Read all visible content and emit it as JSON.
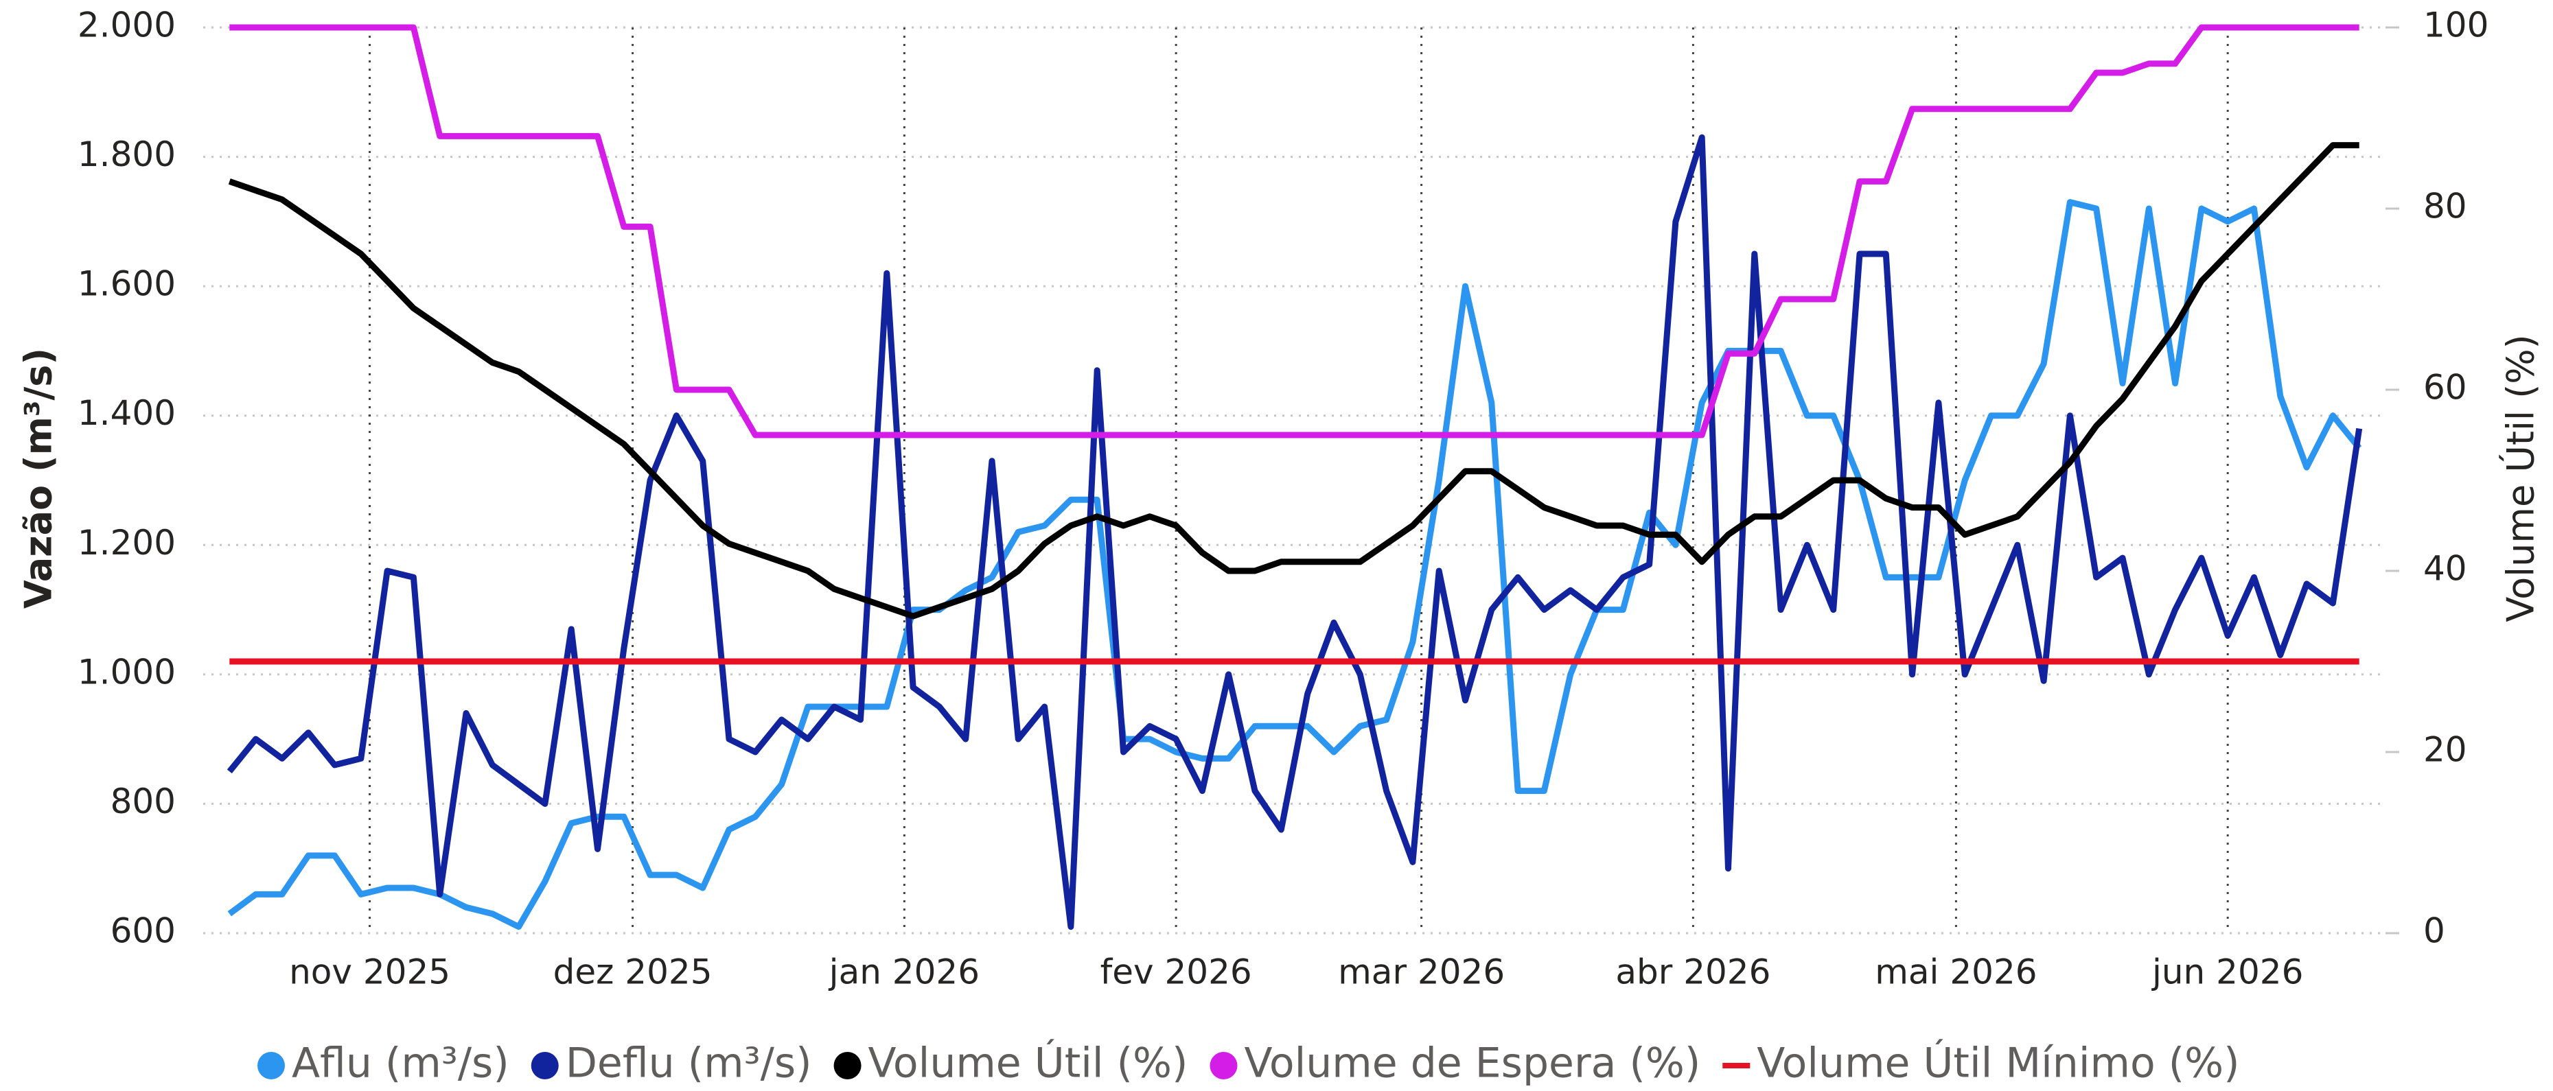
{
  "chart_data": {
    "type": "line",
    "x": [
      0,
      3,
      6,
      9,
      12,
      15,
      18,
      21,
      24,
      27,
      30,
      33,
      36,
      39,
      42,
      45,
      48,
      51,
      54,
      57,
      60,
      63,
      66,
      69,
      72,
      75,
      78,
      81,
      84,
      87,
      90,
      93,
      96,
      99,
      102,
      105,
      108,
      111,
      114,
      117,
      120,
      123,
      126,
      129,
      132,
      135,
      138,
      141,
      144,
      147,
      150,
      153,
      156,
      159,
      162,
      165,
      168,
      171,
      174,
      177,
      180,
      183,
      186,
      189,
      192,
      195,
      198,
      201,
      204,
      207,
      210,
      213,
      216,
      219,
      222,
      225,
      228,
      231,
      234,
      237,
      240,
      243
    ],
    "xlim": [
      -3,
      246
    ],
    "xticks": [
      {
        "value": 16,
        "label": "nov 2025"
      },
      {
        "value": 46,
        "label": "dez 2025"
      },
      {
        "value": 77,
        "label": "jan 2026"
      },
      {
        "value": 108,
        "label": "fev 2026"
      },
      {
        "value": 136,
        "label": "mar 2026"
      },
      {
        "value": 167,
        "label": "abr 2026"
      },
      {
        "value": 197,
        "label": "mai 2026"
      },
      {
        "value": 228,
        "label": "jun 2026"
      }
    ],
    "ylim": [
      600,
      2000
    ],
    "yticks": [
      600,
      800,
      {
        "value": 1000,
        "label": "1.000"
      },
      {
        "value": 1200,
        "label": "1.200"
      },
      {
        "value": 1400,
        "label": "1.400"
      },
      {
        "value": 1600,
        "label": "1.600"
      },
      {
        "value": 1800,
        "label": "1.800"
      },
      {
        "value": 2000,
        "label": "2.000"
      }
    ],
    "y2lim": [
      0,
      100
    ],
    "y2ticks": [
      0,
      20,
      40,
      60,
      80,
      100
    ],
    "y_label": "Vazão (m³/s)",
    "y2_label": "Volume Útil (%)",
    "grid": true,
    "legend": "bottom",
    "series": [
      {
        "name": "Aflu (m³/s)",
        "color": "#2b95f0",
        "values": [
          630,
          660,
          660,
          720,
          720,
          660,
          670,
          670,
          660,
          640,
          630,
          610,
          680,
          770,
          780,
          780,
          690,
          690,
          670,
          760,
          780,
          830,
          950,
          950,
          950,
          950,
          1100,
          1100,
          1130,
          1150,
          1220,
          1230,
          1270,
          1270,
          900,
          900,
          880,
          870,
          870,
          920,
          920,
          920,
          880,
          920,
          930,
          1050,
          1300,
          1600,
          1420,
          820,
          820,
          1000,
          1100,
          1100,
          1250,
          1200,
          1420,
          1500,
          1500,
          1500,
          1400,
          1400,
          1300,
          1150,
          1150,
          1150,
          1300,
          1400,
          1400,
          1480,
          1730,
          1720,
          1450,
          1720,
          1450,
          1720,
          1700,
          1720,
          1430,
          1320,
          1400,
          1350
        ]
      },
      {
        "name": "Deflu (m³/s)",
        "color": "#12239e",
        "values": [
          850,
          900,
          870,
          910,
          860,
          870,
          1160,
          1150,
          660,
          940,
          860,
          830,
          800,
          1070,
          730,
          1040,
          1300,
          1400,
          1330,
          900,
          880,
          930,
          900,
          950,
          930,
          1620,
          980,
          950,
          900,
          1330,
          900,
          950,
          610,
          1470,
          880,
          920,
          900,
          820,
          1000,
          820,
          760,
          970,
          1080,
          1000,
          820,
          710,
          1160,
          960,
          1100,
          1150,
          1100,
          1130,
          1100,
          1150,
          1170,
          1700,
          1830,
          700,
          1650,
          1100,
          1200,
          1100,
          1650,
          1650,
          1000,
          1420,
          1000,
          1100,
          1200,
          990,
          1400,
          1150,
          1180,
          1000,
          1100,
          1180,
          1060,
          1150,
          1030,
          1140,
          1110,
          1380
        ]
      },
      {
        "name": "Volume Útil (%)",
        "color": "#000000",
        "axis": "y2",
        "values": [
          83,
          82,
          81,
          79,
          77,
          75,
          72,
          69,
          67,
          65,
          63,
          62,
          60,
          58,
          56,
          54,
          51,
          48,
          45,
          43,
          42,
          41,
          40,
          38,
          37,
          36,
          35,
          36,
          37,
          38,
          40,
          43,
          45,
          46,
          45,
          46,
          45,
          42,
          40,
          40,
          41,
          41,
          41,
          41,
          43,
          45,
          48,
          51,
          51,
          49,
          47,
          46,
          45,
          45,
          44,
          44,
          41,
          44,
          46,
          46,
          48,
          50,
          50,
          48,
          47,
          47,
          44,
          45,
          46,
          49,
          52,
          56,
          59,
          63,
          67,
          72,
          75,
          78,
          81,
          84,
          87,
          87
        ]
      },
      {
        "name": "Volume de Espera (%)",
        "color": "#d41ee8",
        "axis": "y2",
        "values": [
          100,
          100,
          100,
          100,
          100,
          100,
          100,
          100,
          88,
          88,
          88,
          88,
          88,
          88,
          88,
          78,
          78,
          60,
          60,
          60,
          55,
          55,
          55,
          55,
          55,
          55,
          55,
          55,
          55,
          55,
          55,
          55,
          55,
          55,
          55,
          55,
          55,
          55,
          55,
          55,
          55,
          55,
          55,
          55,
          55,
          55,
          55,
          55,
          55,
          55,
          55,
          55,
          55,
          55,
          55,
          55,
          55,
          64,
          64,
          70,
          70,
          70,
          83,
          83,
          91,
          91,
          91,
          91,
          91,
          91,
          91,
          95,
          95,
          96,
          96,
          100,
          100,
          100,
          100,
          100,
          100,
          100
        ]
      },
      {
        "name": "Volume Útil Mínimo (%)",
        "color": "#e81123",
        "axis": "y2",
        "marker": "line",
        "values": [
          30,
          30,
          30,
          30,
          30,
          30,
          30,
          30,
          30,
          30,
          30,
          30,
          30,
          30,
          30,
          30,
          30,
          30,
          30,
          30,
          30,
          30,
          30,
          30,
          30,
          30,
          30,
          30,
          30,
          30,
          30,
          30,
          30,
          30,
          30,
          30,
          30,
          30,
          30,
          30,
          30,
          30,
          30,
          30,
          30,
          30,
          30,
          30,
          30,
          30,
          30,
          30,
          30,
          30,
          30,
          30,
          30,
          30,
          30,
          30,
          30,
          30,
          30,
          30,
          30,
          30,
          30,
          30,
          30,
          30,
          30,
          30,
          30,
          30,
          30,
          30,
          30,
          30,
          30,
          30,
          30,
          30
        ]
      }
    ]
  }
}
